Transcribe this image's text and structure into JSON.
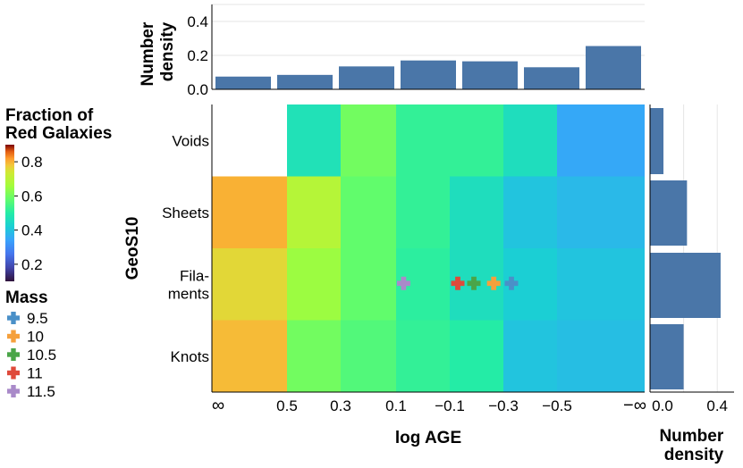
{
  "chart_data": {
    "type": "heatmap",
    "title": "",
    "xlabel": "log AGE",
    "ylabel": "GeoS10",
    "x_tick_labels": [
      "∞",
      "0.5",
      "0.3",
      "0.1",
      "−0.1",
      "−0.3",
      "−0.5",
      "−∞"
    ],
    "rows": [
      "Voids",
      "Sheets",
      "Fila-\nments",
      "Knots"
    ],
    "row_labels": [
      [
        "Voids"
      ],
      [
        "Sheets"
      ],
      [
        "Fila-",
        "ments"
      ],
      [
        "Knots"
      ]
    ],
    "values": [
      [
        null,
        0.47,
        0.6,
        0.52,
        0.52,
        0.46,
        0.35
      ],
      [
        0.8,
        0.69,
        0.58,
        0.52,
        0.46,
        0.4,
        0.38
      ],
      [
        0.76,
        0.65,
        0.58,
        0.51,
        0.46,
        0.42,
        0.4
      ],
      [
        0.79,
        0.6,
        0.56,
        0.52,
        0.5,
        0.4,
        0.39
      ]
    ],
    "colorbar": {
      "title": [
        "Fraction of",
        "Red Galaxies"
      ],
      "range": [
        0.1,
        0.9
      ],
      "ticks": [
        0.2,
        0.4,
        0.6,
        0.8
      ],
      "tick_labels": [
        "0.2",
        "0.4",
        "0.6",
        "0.8"
      ]
    },
    "top_marginal": {
      "ylabel": [
        "Number",
        "density"
      ],
      "values": [
        0.075,
        0.085,
        0.135,
        0.17,
        0.165,
        0.13,
        0.255
      ],
      "ylim": [
        0,
        0.5
      ],
      "ticks": [
        0,
        0.2,
        0.4
      ],
      "tick_labels": [
        "0.0",
        "0.2",
        "0.4"
      ]
    },
    "right_marginal": {
      "xlabel": [
        "Number",
        "density"
      ],
      "values": [
        0.08,
        0.22,
        0.42,
        0.2
      ],
      "xlim": [
        0,
        0.5
      ],
      "ticks": [
        0,
        0.4
      ],
      "tick_labels": [
        "0.0",
        "0.4"
      ]
    },
    "markers": {
      "legend_title": "Mass",
      "row": "Filaments",
      "series": [
        {
          "mass": "9.5",
          "color": "#4a90c8",
          "x_cells": 5.15
        },
        {
          "mass": "10",
          "color": "#f5a03c",
          "x_cells": 4.82
        },
        {
          "mass": "10.5",
          "color": "#4aa548",
          "x_cells": 4.45
        },
        {
          "mass": "11",
          "color": "#df4a3b",
          "x_cells": 4.15
        },
        {
          "mass": "11.5",
          "color": "#a98ac9",
          "x_cells": 3.14
        }
      ]
    },
    "colors": {
      "bar": "#4a76a8",
      "grid": "#e6e6e6",
      "axis": "#000000"
    }
  }
}
